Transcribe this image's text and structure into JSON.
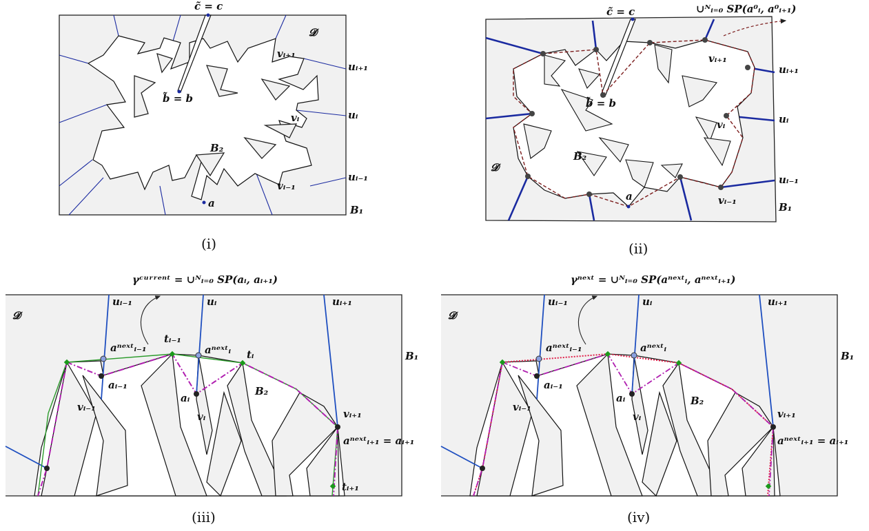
{
  "captions": [
    "(i)",
    "(ii)",
    "(iii)",
    "(iv)"
  ],
  "panel_i": {
    "c": "c̃ = c",
    "b": "b̃ = b",
    "domain": "𝓓",
    "B2": "B₂",
    "B1": "B₁",
    "a": "a",
    "u_next": "uᵢ₊₁",
    "u_i": "uᵢ",
    "u_prev": "uᵢ₋₁",
    "v_next": "vᵢ₊₁",
    "v_i": "vᵢ",
    "v_prev": "vᵢ₋₁"
  },
  "panel_ii": {
    "c": "c̃ = c",
    "b": "b̃ = b",
    "union": "∪ᴺᵢ₌₀ SP(a⁰ᵢ, a⁰ᵢ₊₁)",
    "domain": "𝓓",
    "B2": "B₂",
    "B1": "B₁",
    "a": "a",
    "u_next": "uᵢ₊₁",
    "u_i": "uᵢ",
    "u_prev": "uᵢ₋₁",
    "v_next": "vᵢ₊₁",
    "v_i": "vᵢ",
    "v_prev": "vᵢ₋₁"
  },
  "panel_iii": {
    "gamma": "γᶜᵘʳʳᵉⁿᵗ = ∪ᴺᵢ₌₀ SP(aᵢ, aᵢ₊₁)",
    "domain": "𝓓",
    "B1": "B₁",
    "B2": "B₂",
    "u_prev": "uᵢ₋₁",
    "u_i": "uᵢ",
    "u_next": "uᵢ₊₁",
    "a_prev_next": "aⁿᵉˣᵗᵢ₋₁",
    "t_prev": "tᵢ₋₁",
    "a_i_next": "aⁿᵉˣᵗᵢ",
    "t_i": "tᵢ",
    "a_prev": "aᵢ₋₁",
    "a_i": "aᵢ",
    "v_prev": "vᵢ₋₁",
    "v_i": "vᵢ",
    "v_next": "vᵢ₊₁",
    "a_next_eq": "aⁿᵉˣᵗᵢ₊₁ = aᵢ₊₁",
    "t_next": "tᵢ₊₁"
  },
  "panel_iv": {
    "gamma": "γⁿᵉˣᵗ = ∪ᴺᵢ₌₀ SP(aⁿᵉˣᵗᵢ, aⁿᵉˣᵗᵢ₊₁)",
    "domain": "𝓓",
    "B1": "B₁",
    "B2": "B₂",
    "u_prev": "uᵢ₋₁",
    "u_i": "uᵢ",
    "u_next": "uᵢ₊₁",
    "a_prev_next": "aⁿᵉˣᵗᵢ₋₁",
    "a_i_next": "aⁿᵉˣᵗᵢ",
    "a_prev": "aᵢ₋₁",
    "a_i": "aᵢ",
    "v_prev": "vᵢ₋₁",
    "v_i": "vᵢ",
    "v_next": "vᵢ₊₁",
    "a_next_eq": "aⁿᵉˣᵗᵢ₊₁ = aᵢ₊₁"
  },
  "colors": {
    "region": "#f1f1f1",
    "spokes": "#1a2aa0",
    "spokes_bright": "#1f4fc0",
    "path_dashed": "#7a1a1a",
    "gamma_current": "#2a9a2a",
    "dashdot": "#b01fb0",
    "gamma_next": "#e0204a",
    "point_dark": "#222222",
    "point_blue": "#8aa0e0",
    "point_green": "#1a9a1a"
  }
}
